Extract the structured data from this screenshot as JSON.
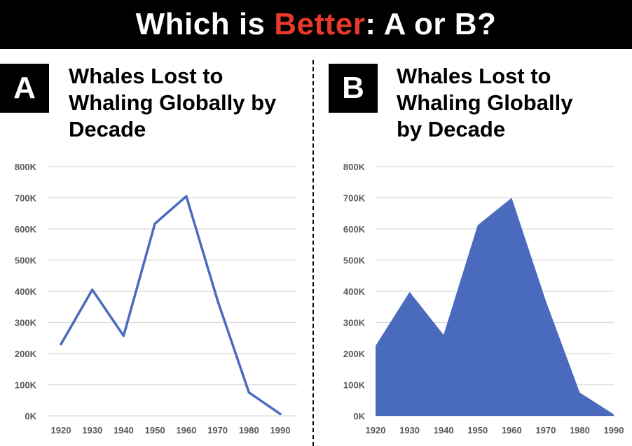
{
  "header": {
    "prefix": "Which is ",
    "accent": "Better",
    "suffix": ": A or B?",
    "accent_color": "#e8392b"
  },
  "panel_a": {
    "badge": "A",
    "title_lines": [
      "Whales Lost to",
      "Whaling Globally by",
      "Decade"
    ]
  },
  "panel_b": {
    "badge": "B",
    "title_lines": [
      "Whales Lost to",
      "Whaling Globally",
      "by Decade"
    ]
  },
  "chart_data": [
    {
      "type": "line",
      "title": "Whales Lost to Whaling Globally by Decade",
      "categories": [
        "1920",
        "1930",
        "1940",
        "1950",
        "1960",
        "1970",
        "1980",
        "1990"
      ],
      "values": [
        230000,
        405000,
        257000,
        617000,
        705000,
        370000,
        75000,
        6000
      ],
      "yticks": [
        "0K",
        "100K",
        "200K",
        "300K",
        "400K",
        "500K",
        "600K",
        "700K",
        "800K"
      ],
      "ylim": [
        0,
        800000
      ],
      "grid": true,
      "color": "#4a6bbd"
    },
    {
      "type": "area",
      "title": "Whales Lost to Whaling Globally by Decade",
      "categories": [
        "1920",
        "1930",
        "1940",
        "1950",
        "1960",
        "1970",
        "1980",
        "1990"
      ],
      "values": [
        225000,
        398000,
        260000,
        612000,
        700000,
        370000,
        75000,
        5000
      ],
      "yticks": [
        "0K",
        "100K",
        "200K",
        "300K",
        "400K",
        "500K",
        "600K",
        "700K",
        "800K"
      ],
      "ylim": [
        0,
        800000
      ],
      "grid": true,
      "color": "#4a6bbd"
    }
  ]
}
